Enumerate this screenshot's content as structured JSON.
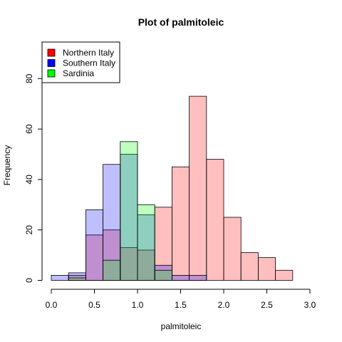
{
  "chart_data": {
    "type": "bar",
    "title": "Plot of palmitoleic",
    "xlabel": "palmitoleic",
    "ylabel": "Frequency",
    "xlim": [
      0,
      3
    ],
    "ylim": [
      0,
      90
    ],
    "xticks": [
      "0.0",
      "0.5",
      "1.0",
      "1.5",
      "2.0",
      "2.5",
      "3.0"
    ],
    "yticks": [
      "0",
      "20",
      "40",
      "60",
      "80"
    ],
    "legend_position": "top-left",
    "series": [
      {
        "name": "Northern Italy",
        "color": "#ff0000",
        "fill": "rgba(255,0,0,0.25)",
        "bin_width": 0.2,
        "bins": [
          {
            "x0": 0.2,
            "x1": 0.4,
            "y": 2
          },
          {
            "x0": 0.4,
            "x1": 0.6,
            "y": 18
          },
          {
            "x0": 0.6,
            "x1": 0.8,
            "y": 20
          },
          {
            "x0": 0.8,
            "x1": 1.0,
            "y": 13
          },
          {
            "x0": 1.0,
            "x1": 1.2,
            "y": 12
          },
          {
            "x0": 1.2,
            "x1": 1.4,
            "y": 29
          },
          {
            "x0": 1.4,
            "x1": 1.6,
            "y": 45
          },
          {
            "x0": 1.6,
            "x1": 1.8,
            "y": 73
          },
          {
            "x0": 1.8,
            "x1": 2.0,
            "y": 48
          },
          {
            "x0": 2.0,
            "x1": 2.2,
            "y": 25
          },
          {
            "x0": 2.2,
            "x1": 2.4,
            "y": 11
          },
          {
            "x0": 2.4,
            "x1": 2.6,
            "y": 9
          },
          {
            "x0": 2.6,
            "x1": 2.8,
            "y": 4
          }
        ]
      },
      {
        "name": "Southern Italy",
        "color": "#0000ff",
        "fill": "rgba(0,0,255,0.25)",
        "bin_width": 0.2,
        "bins": [
          {
            "x0": 0.0,
            "x1": 0.2,
            "y": 2
          },
          {
            "x0": 0.2,
            "x1": 0.4,
            "y": 3
          },
          {
            "x0": 0.4,
            "x1": 0.6,
            "y": 28
          },
          {
            "x0": 0.6,
            "x1": 0.8,
            "y": 46
          },
          {
            "x0": 0.8,
            "x1": 1.0,
            "y": 50
          },
          {
            "x0": 1.0,
            "x1": 1.2,
            "y": 26
          },
          {
            "x0": 1.2,
            "x1": 1.4,
            "y": 6
          },
          {
            "x0": 1.4,
            "x1": 1.6,
            "y": 2
          },
          {
            "x0": 1.6,
            "x1": 1.8,
            "y": 2
          }
        ]
      },
      {
        "name": "Sardinia",
        "color": "#00ff00",
        "fill": "rgba(0,255,0,0.25)",
        "bin_width": 0.2,
        "bins": [
          {
            "x0": 0.2,
            "x1": 0.4,
            "y": 1
          },
          {
            "x0": 0.6,
            "x1": 0.8,
            "y": 8
          },
          {
            "x0": 0.8,
            "x1": 1.0,
            "y": 55
          },
          {
            "x0": 1.0,
            "x1": 1.2,
            "y": 30
          },
          {
            "x0": 1.2,
            "x1": 1.4,
            "y": 4
          }
        ]
      }
    ]
  }
}
